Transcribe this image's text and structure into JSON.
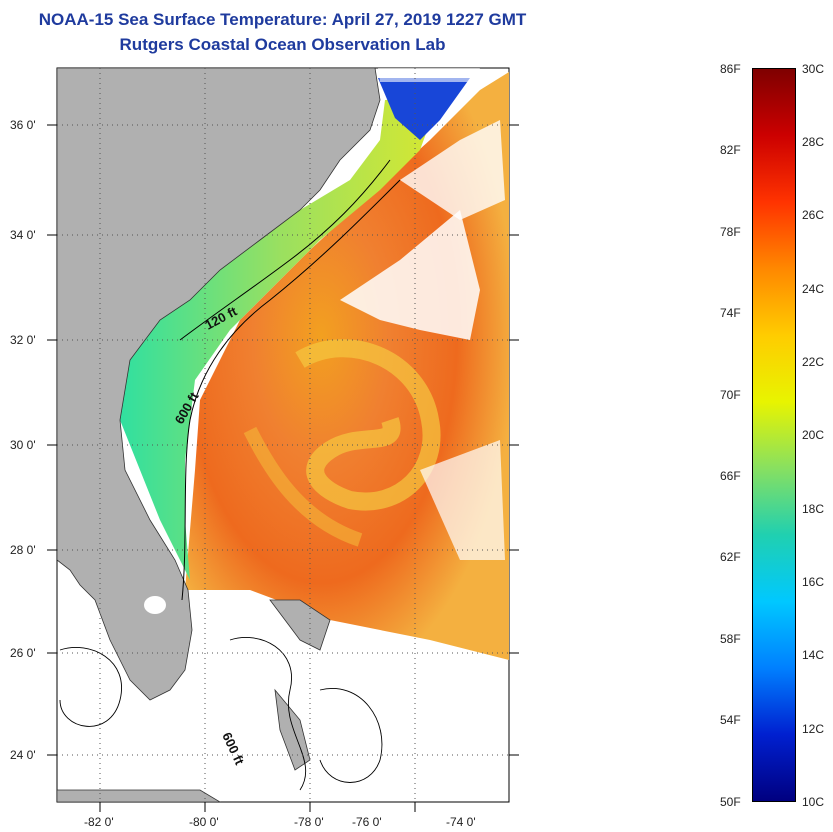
{
  "title_line1": "NOAA-15 Sea Surface Temperature:  April 27, 2019 1227 GMT",
  "title_line2": "Rutgers Coastal Ocean Observation Lab",
  "lon_ticks": [
    "-82 0'",
    "-80 0'",
    "-78 0'",
    "-76 0'",
    "-74 0'"
  ],
  "lat_ticks": [
    "36 0'",
    "34 0'",
    "32 0'",
    "30 0'",
    "28 0'",
    "26 0'",
    "24 0'"
  ],
  "contours": {
    "c120": "120 ft",
    "c600a": "600 ft",
    "c600b": "600 ft"
  },
  "colorbar": {
    "fahrenheit": [
      "86F",
      "82F",
      "78F",
      "74F",
      "70F",
      "66F",
      "62F",
      "58F",
      "54F",
      "50F"
    ],
    "celsius": [
      "30C",
      "28C",
      "26C",
      "24C",
      "22C",
      "20C",
      "18C",
      "16C",
      "14C",
      "12C",
      "10C"
    ],
    "colors": [
      "#7f0000",
      "#cc0000",
      "#ff3300",
      "#ff8800",
      "#ffcc00",
      "#e8f400",
      "#88e060",
      "#20d0b0",
      "#00c8ff",
      "#0080ff",
      "#0020d0",
      "#000080"
    ]
  }
}
